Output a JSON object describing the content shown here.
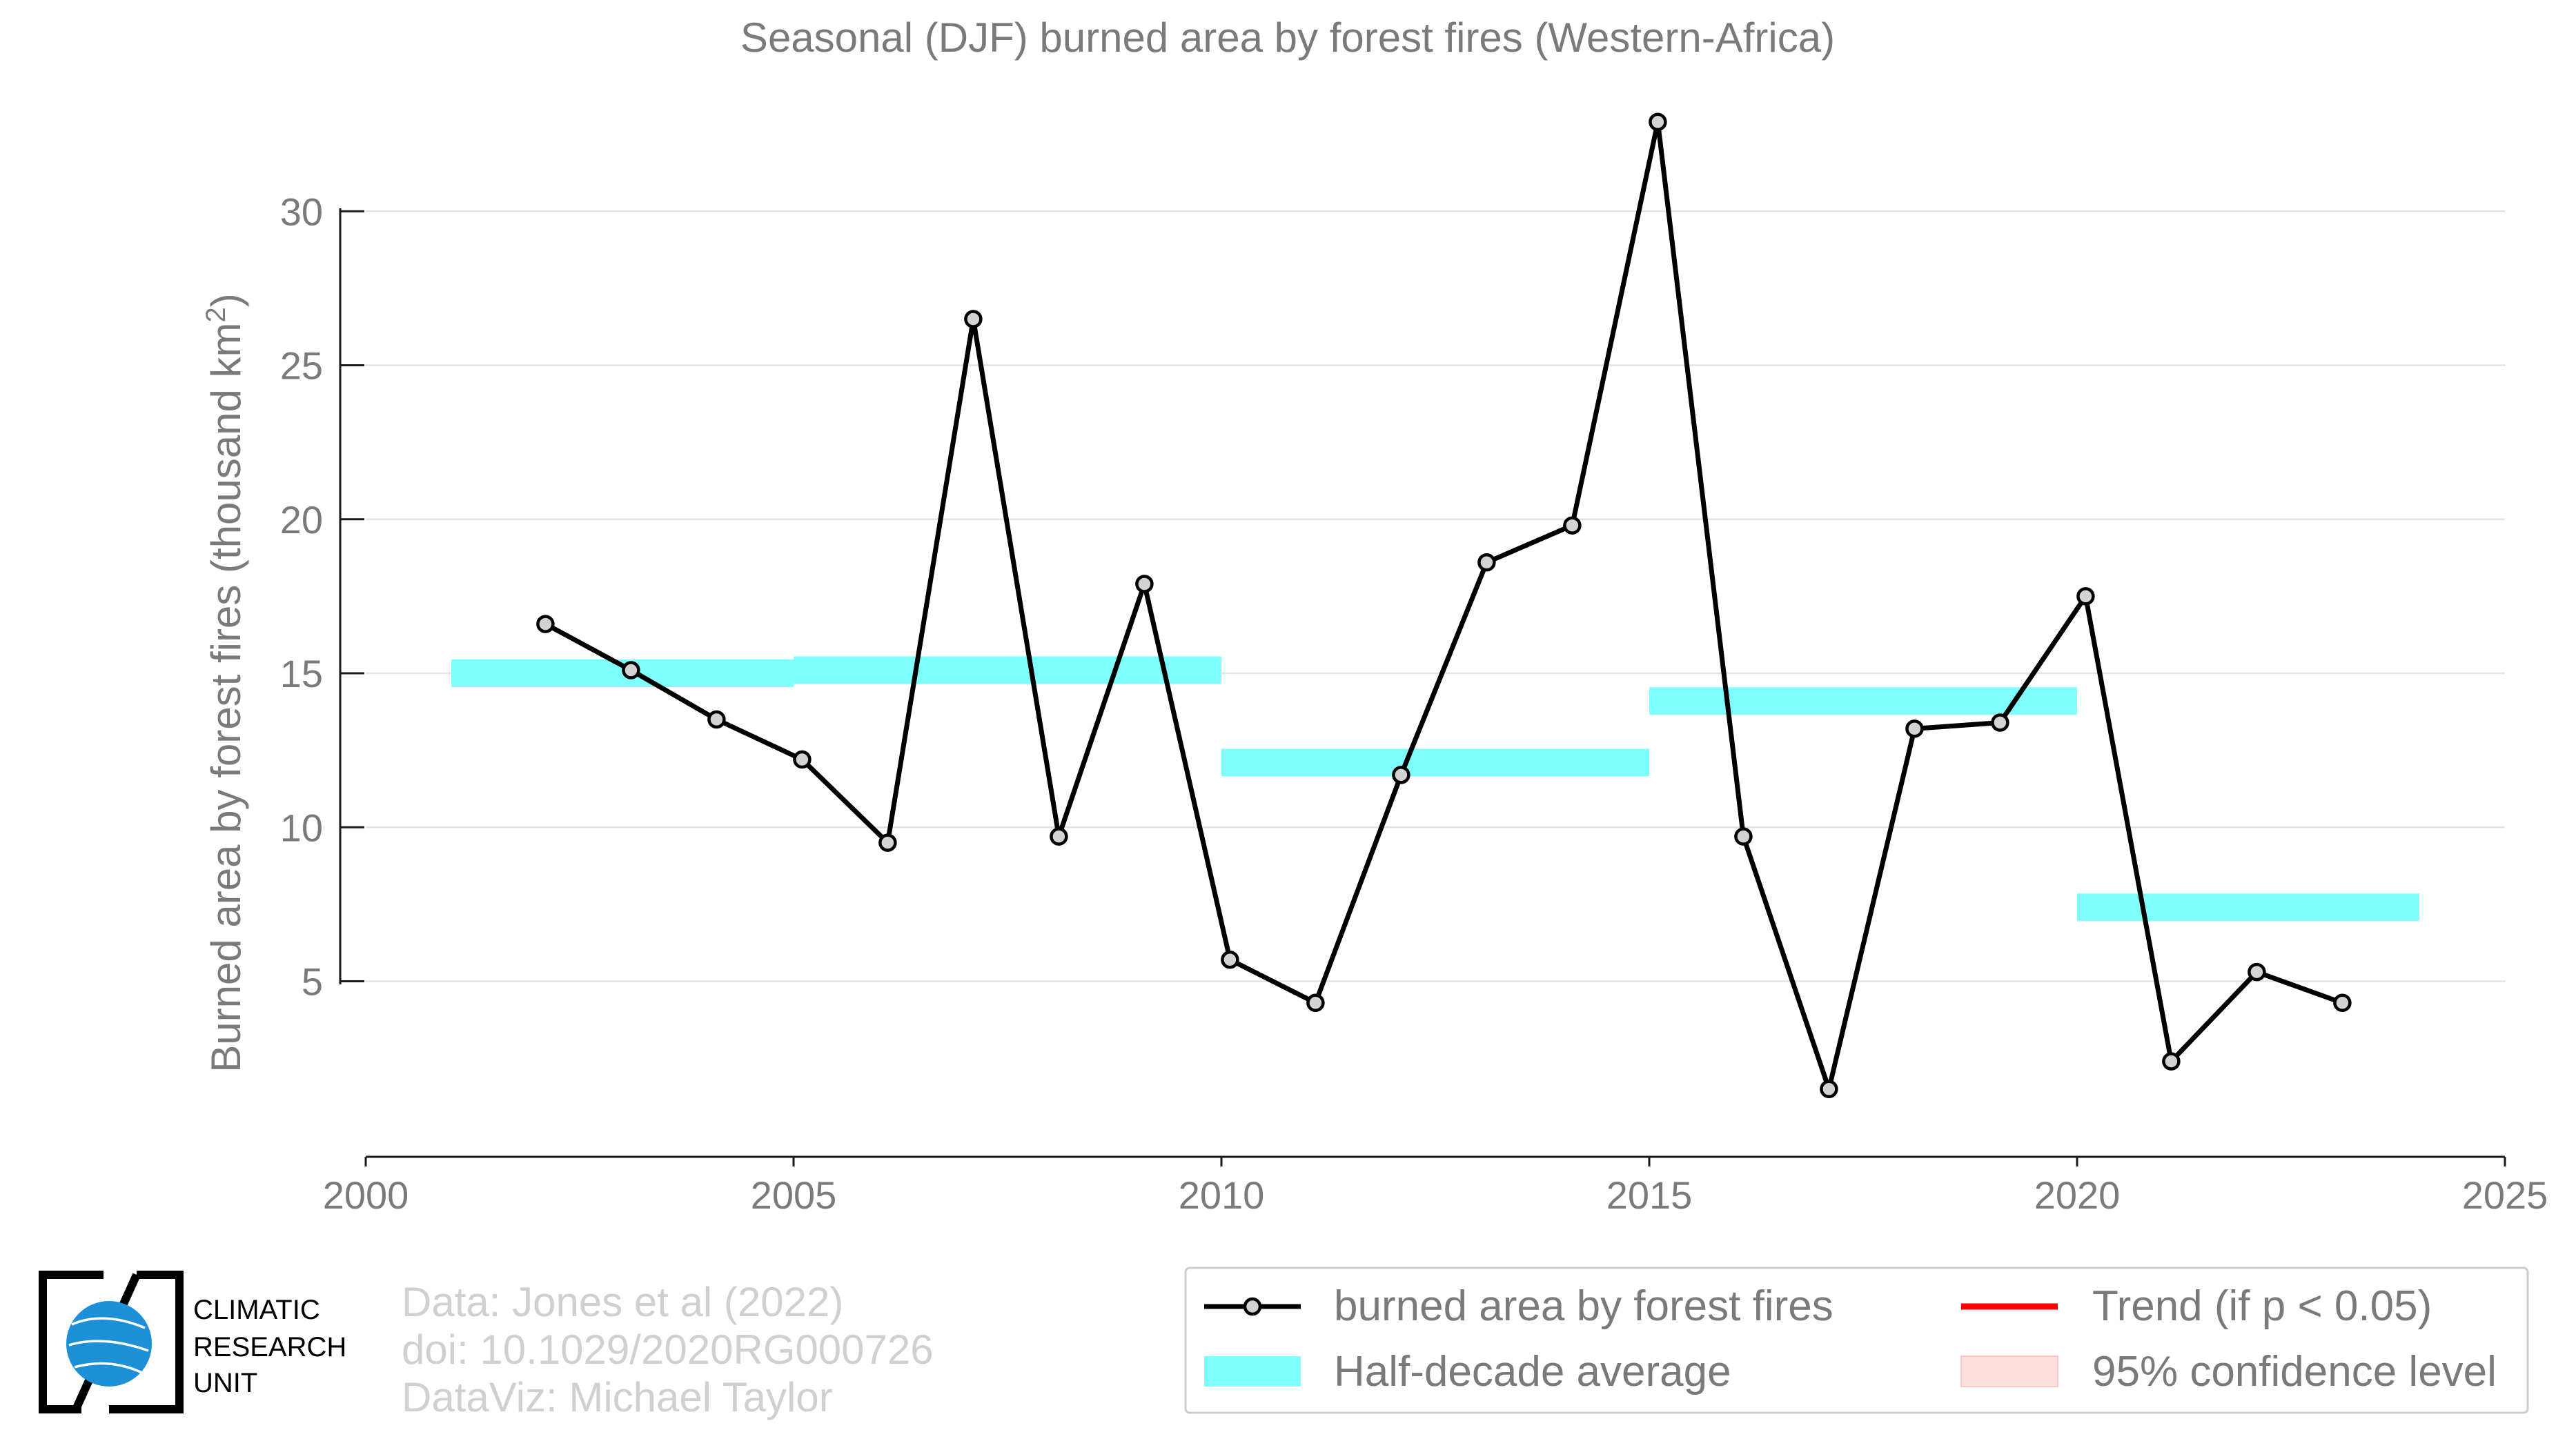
{
  "chart_data": {
    "type": "line",
    "title": "Seasonal (DJF) burned area by forest fires (Western-Africa)",
    "ylabel": "Burned area by forest fires (thousand km",
    "ylabel_sup": "2",
    "ylabel_close": ")",
    "xlim": [
      2000,
      2025
    ],
    "ylim": [
      -0.7,
      33.5
    ],
    "x_ticks": [
      2000,
      2005,
      2010,
      2015,
      2020,
      2025
    ],
    "y_ticks": [
      5,
      10,
      15,
      20,
      25,
      30
    ],
    "grid": true,
    "series": [
      {
        "name": "burned area by forest fires",
        "color": "#000000",
        "x": [
          2002.1,
          2003.1,
          2004.1,
          2005.1,
          2006.1,
          2007.1,
          2008.1,
          2009.1,
          2010.1,
          2011.1,
          2012.1,
          2013.1,
          2014.1,
          2015.1,
          2016.1,
          2017.1,
          2018.1,
          2019.1,
          2020.1,
          2021.1,
          2022.1,
          2023.1
        ],
        "y": [
          16.6,
          15.1,
          13.5,
          12.2,
          9.5,
          26.5,
          9.7,
          17.9,
          5.7,
          4.3,
          11.7,
          18.6,
          19.8,
          32.9,
          9.7,
          1.5,
          13.2,
          13.4,
          17.5,
          2.4,
          5.3,
          4.3
        ]
      }
    ],
    "half_decade_average": {
      "name": "Half-decade average",
      "color": "#80ffff",
      "segments": [
        {
          "x_start": 2001,
          "x_end": 2005,
          "y": 15.0
        },
        {
          "x_start": 2005,
          "x_end": 2010,
          "y": 15.1
        },
        {
          "x_start": 2010,
          "x_end": 2015,
          "y": 12.1
        },
        {
          "x_start": 2015,
          "x_end": 2020,
          "y": 14.1
        },
        {
          "x_start": 2020,
          "x_end": 2024,
          "y": 7.4
        }
      ]
    },
    "legend": {
      "placement": "bottom-right",
      "items": [
        {
          "label": "burned area by forest fires",
          "type": "line-marker",
          "color": "#000000"
        },
        {
          "label": "Trend (if p < 0.05)",
          "type": "line",
          "color": "#ff0000"
        },
        {
          "label": "Half-decade average",
          "type": "band",
          "color": "#80ffff"
        },
        {
          "label": "95% confidence level",
          "type": "band",
          "color": "#ffe0e0"
        }
      ]
    }
  },
  "credits": {
    "line1": "Data: Jones et al (2022)",
    "line2": "doi: 10.1029/2020RG000726",
    "line3": "DataViz: Michael Taylor"
  },
  "logo": {
    "line1": "CLIMATIC",
    "line2": "RESEARCH",
    "line3": "UNIT",
    "globe_color": "#1e90d8"
  }
}
